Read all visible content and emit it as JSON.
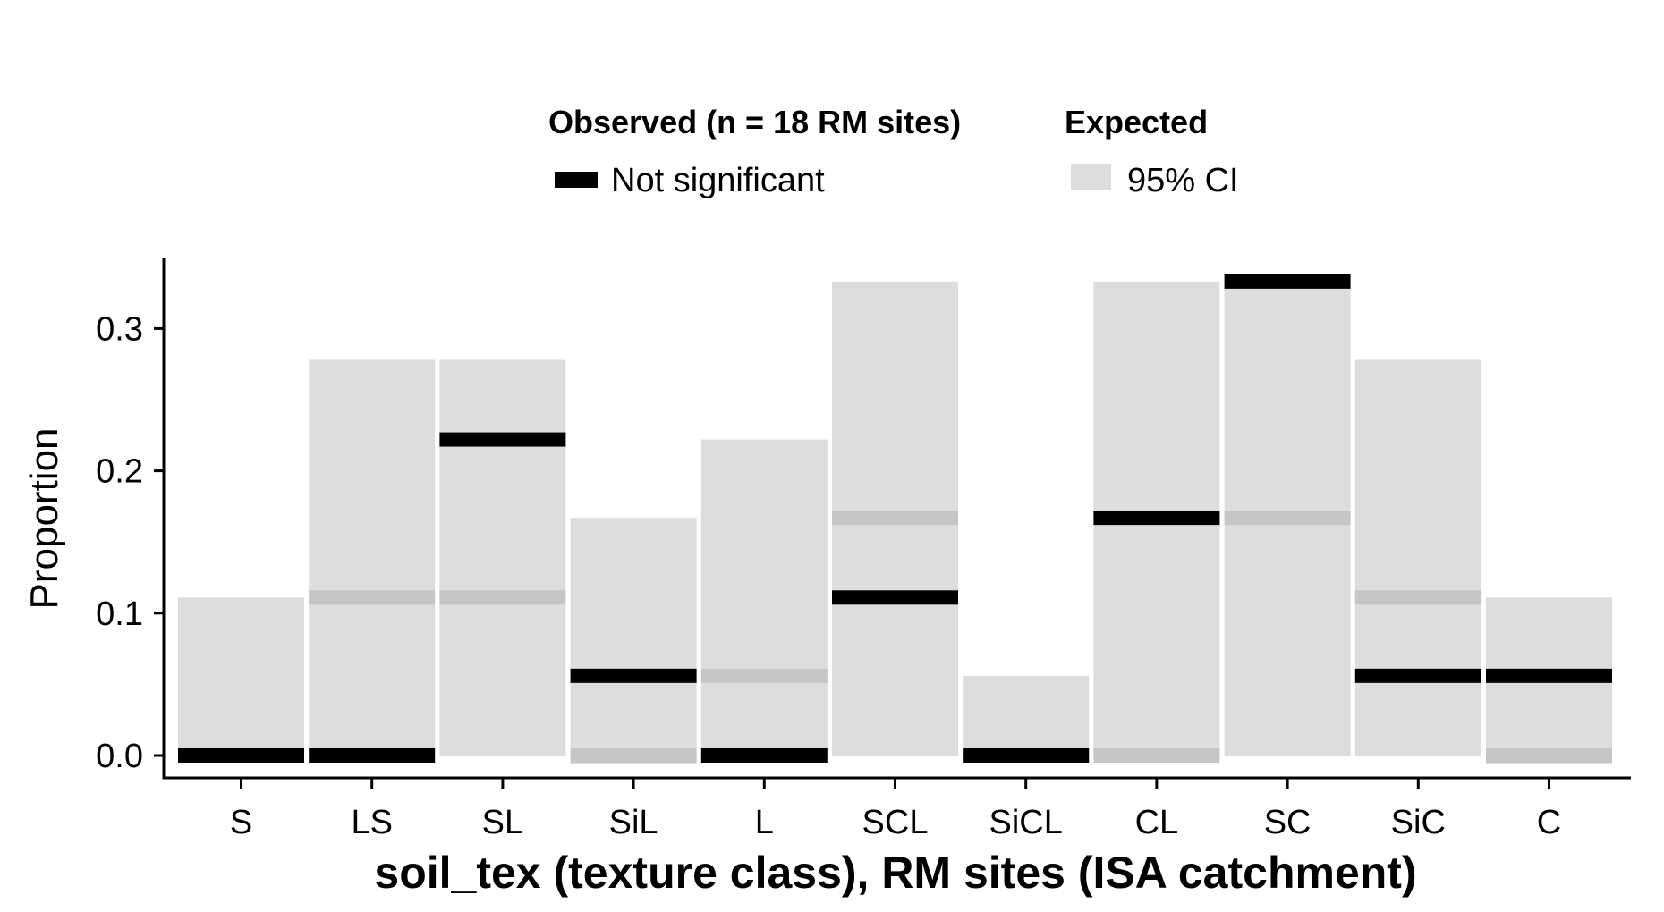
{
  "chart_data": {
    "type": "bar",
    "xlabel": "soil_tex (texture class), RM sites (ISA catchment)",
    "ylabel": "Proportion",
    "ylim": [
      -0.016,
      0.35
    ],
    "yticks": [
      0.0,
      0.1,
      0.2,
      0.3
    ],
    "ytick_labels": [
      "0.0",
      "0.1",
      "0.2",
      "0.3"
    ],
    "categories": [
      "S",
      "LS",
      "SL",
      "SiL",
      "L",
      "SCL",
      "SiCL",
      "CL",
      "SC",
      "SiC",
      "C"
    ],
    "legend": {
      "placement": "top",
      "observed_title": "Observed (n = 18 RM sites)",
      "observed_label": "Not significant",
      "expected_title": "Expected",
      "expected_label": "95% CI"
    },
    "series": [
      {
        "name": "95% CI",
        "kind": "interval",
        "lower": [
          0.0,
          0.0,
          0.0,
          -0.006,
          0.0,
          0.0,
          0.0,
          0.0,
          0.0,
          0.0,
          -0.006
        ],
        "upper": [
          0.111,
          0.278,
          0.278,
          0.167,
          0.222,
          0.333,
          0.056,
          0.333,
          0.333,
          0.278,
          0.111
        ],
        "center": [
          0.0,
          0.111,
          0.111,
          0.0,
          0.056,
          0.167,
          0.0,
          0.0,
          0.167,
          0.111,
          0.0
        ]
      },
      {
        "name": "Not significant",
        "kind": "observed",
        "values": [
          0.0,
          0.0,
          0.222,
          0.056,
          0.0,
          0.111,
          0.0,
          0.167,
          0.333,
          0.056,
          0.056
        ]
      }
    ],
    "colors": {
      "ci_fill": "#dddddd",
      "expected_line": "#c6c6c6",
      "observed": "#000000"
    }
  }
}
